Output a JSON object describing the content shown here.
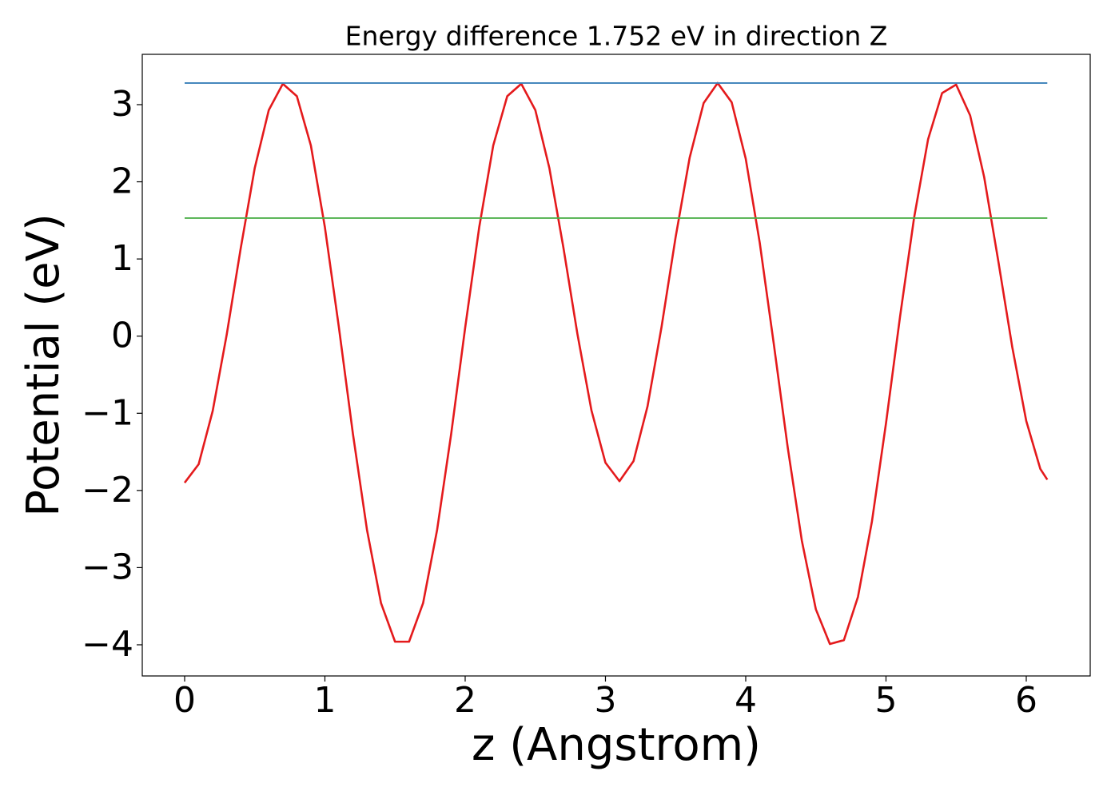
{
  "chart_data": {
    "type": "line",
    "title": "Energy difference 1.752 eV in direction Z",
    "xlabel": "z (Angstrom)",
    "ylabel": "Potential (eV)",
    "xlim": [
      -0.302,
      6.456
    ],
    "ylim": [
      -4.404,
      3.652
    ],
    "xticks": [
      0,
      1,
      2,
      3,
      4,
      5,
      6
    ],
    "yticks": [
      {
        "value": -4,
        "label": "−4"
      },
      {
        "value": -3,
        "label": "−3"
      },
      {
        "value": -2,
        "label": "−2"
      },
      {
        "value": -1,
        "label": "−1"
      },
      0,
      1,
      2,
      3
    ],
    "grid": false,
    "series": [
      {
        "color": "#e41a1c",
        "x": [
          0,
          0.1,
          0.2,
          0.3,
          0.4,
          0.5,
          0.6,
          0.7,
          0.8,
          0.9,
          1.0,
          1.1,
          1.2,
          1.3,
          1.4,
          1.5,
          1.6,
          1.7,
          1.8,
          1.9,
          2.0,
          2.1,
          2.2,
          2.3,
          2.4,
          2.5,
          2.6,
          2.7,
          2.8,
          2.9,
          3.0,
          3.1,
          3.2,
          3.3,
          3.4,
          3.5,
          3.6,
          3.7,
          3.8,
          3.9,
          4.0,
          4.1,
          4.2,
          4.3,
          4.4,
          4.5,
          4.6,
          4.7,
          4.8,
          4.9,
          5.0,
          5.1,
          5.2,
          5.3,
          5.4,
          5.5,
          5.6,
          5.7,
          5.8,
          5.9,
          6.0,
          6.1,
          6.15
        ],
        "values": [
          -1.9,
          -1.66,
          -0.97,
          0.02,
          1.14,
          2.18,
          2.93,
          3.27,
          3.11,
          2.47,
          1.41,
          0.11,
          -1.27,
          -2.51,
          -3.46,
          -3.96,
          -3.96,
          -3.46,
          -2.51,
          -1.27,
          0.11,
          1.41,
          2.47,
          3.11,
          3.27,
          2.93,
          2.18,
          1.15,
          0.03,
          -0.96,
          -1.64,
          -1.88,
          -1.62,
          -0.91,
          0.12,
          1.28,
          2.31,
          3.02,
          3.28,
          3.03,
          2.3,
          1.21,
          -0.1,
          -1.45,
          -2.65,
          -3.54,
          -3.99,
          -3.94,
          -3.38,
          -2.4,
          -1.13,
          0.25,
          1.53,
          2.55,
          3.15,
          3.26,
          2.86,
          2.06,
          0.98,
          -0.14,
          -1.1,
          -1.72,
          -1.86
        ]
      },
      {
        "color": "#377eb8",
        "x": [
          0,
          6.15
        ],
        "values": [
          3.28,
          3.28
        ]
      },
      {
        "color": "#4daf4a",
        "x": [
          0,
          6.15
        ],
        "values": [
          1.53,
          1.53
        ]
      }
    ]
  }
}
